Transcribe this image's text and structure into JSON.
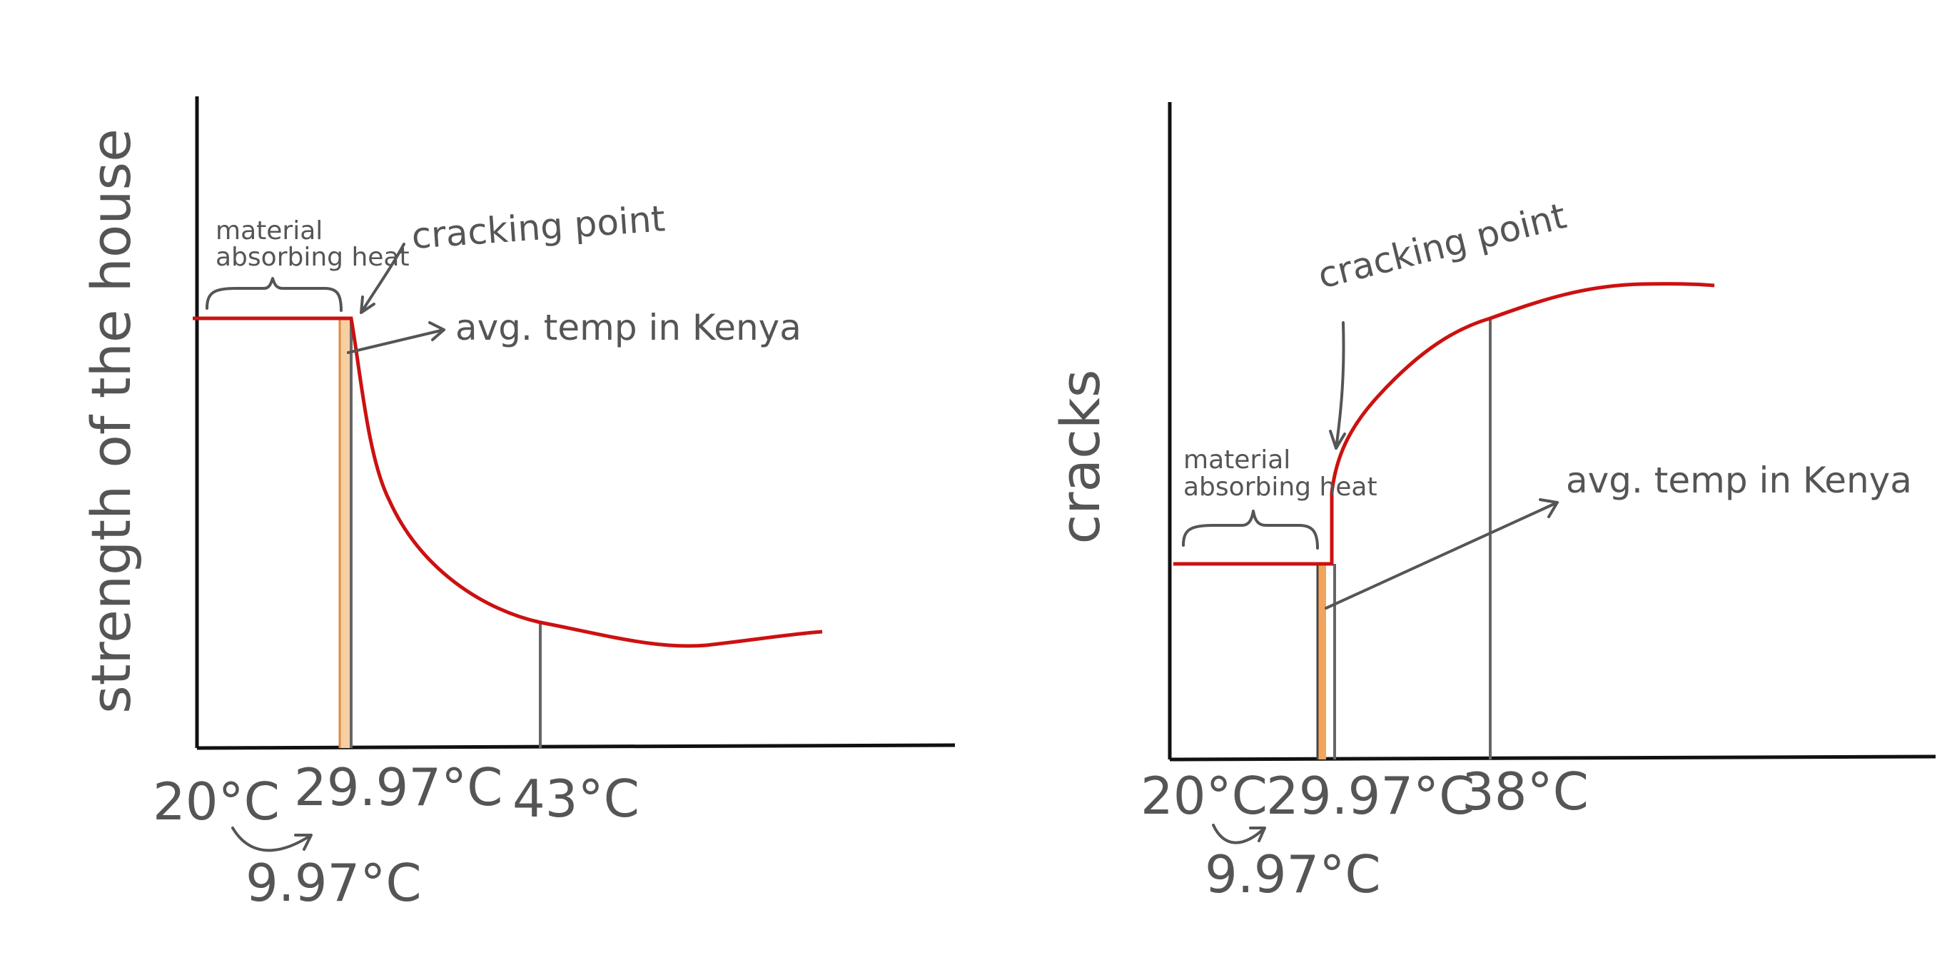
{
  "colors": {
    "curve": "#cc1111",
    "axis": "#111111",
    "guide": "#666666",
    "text": "#555555",
    "band": "#f2a55a"
  },
  "chart_data": [
    {
      "type": "line",
      "title": "",
      "ylabel": "strength of the house",
      "xlabel": "",
      "x_ticks": [
        "20°C",
        "29.97°C",
        "43°C"
      ],
      "x_annotation": "9.97°C",
      "annotations": [
        "material absorbing heat",
        "cracking point",
        "avg. temp in Kenya"
      ],
      "series": [
        {
          "x": [
            20,
            29.0,
            29.97,
            31,
            34,
            38,
            43,
            48,
            53,
            58
          ],
          "y": [
            100,
            100,
            100,
            80,
            55,
            40,
            30,
            27,
            25,
            27
          ]
        }
      ],
      "xlim": [
        20,
        68
      ],
      "ylim": [
        0,
        120
      ]
    },
    {
      "type": "line",
      "title": "",
      "ylabel": "cracks",
      "xlabel": "",
      "x_ticks": [
        "20°C",
        "29.97°C",
        "38°C"
      ],
      "x_annotation": "9.97°C",
      "annotations": [
        "material absorbing heat",
        "cracking point",
        "avg. temp in Kenya"
      ],
      "series": [
        {
          "x": [
            20,
            29.0,
            29.97,
            30.0,
            31.5,
            34,
            38,
            43,
            48
          ],
          "y": [
            30,
            30,
            30,
            50,
            68,
            80,
            87,
            92,
            92
          ]
        }
      ],
      "xlim": [
        20,
        68
      ],
      "ylim": [
        0,
        120
      ]
    }
  ]
}
